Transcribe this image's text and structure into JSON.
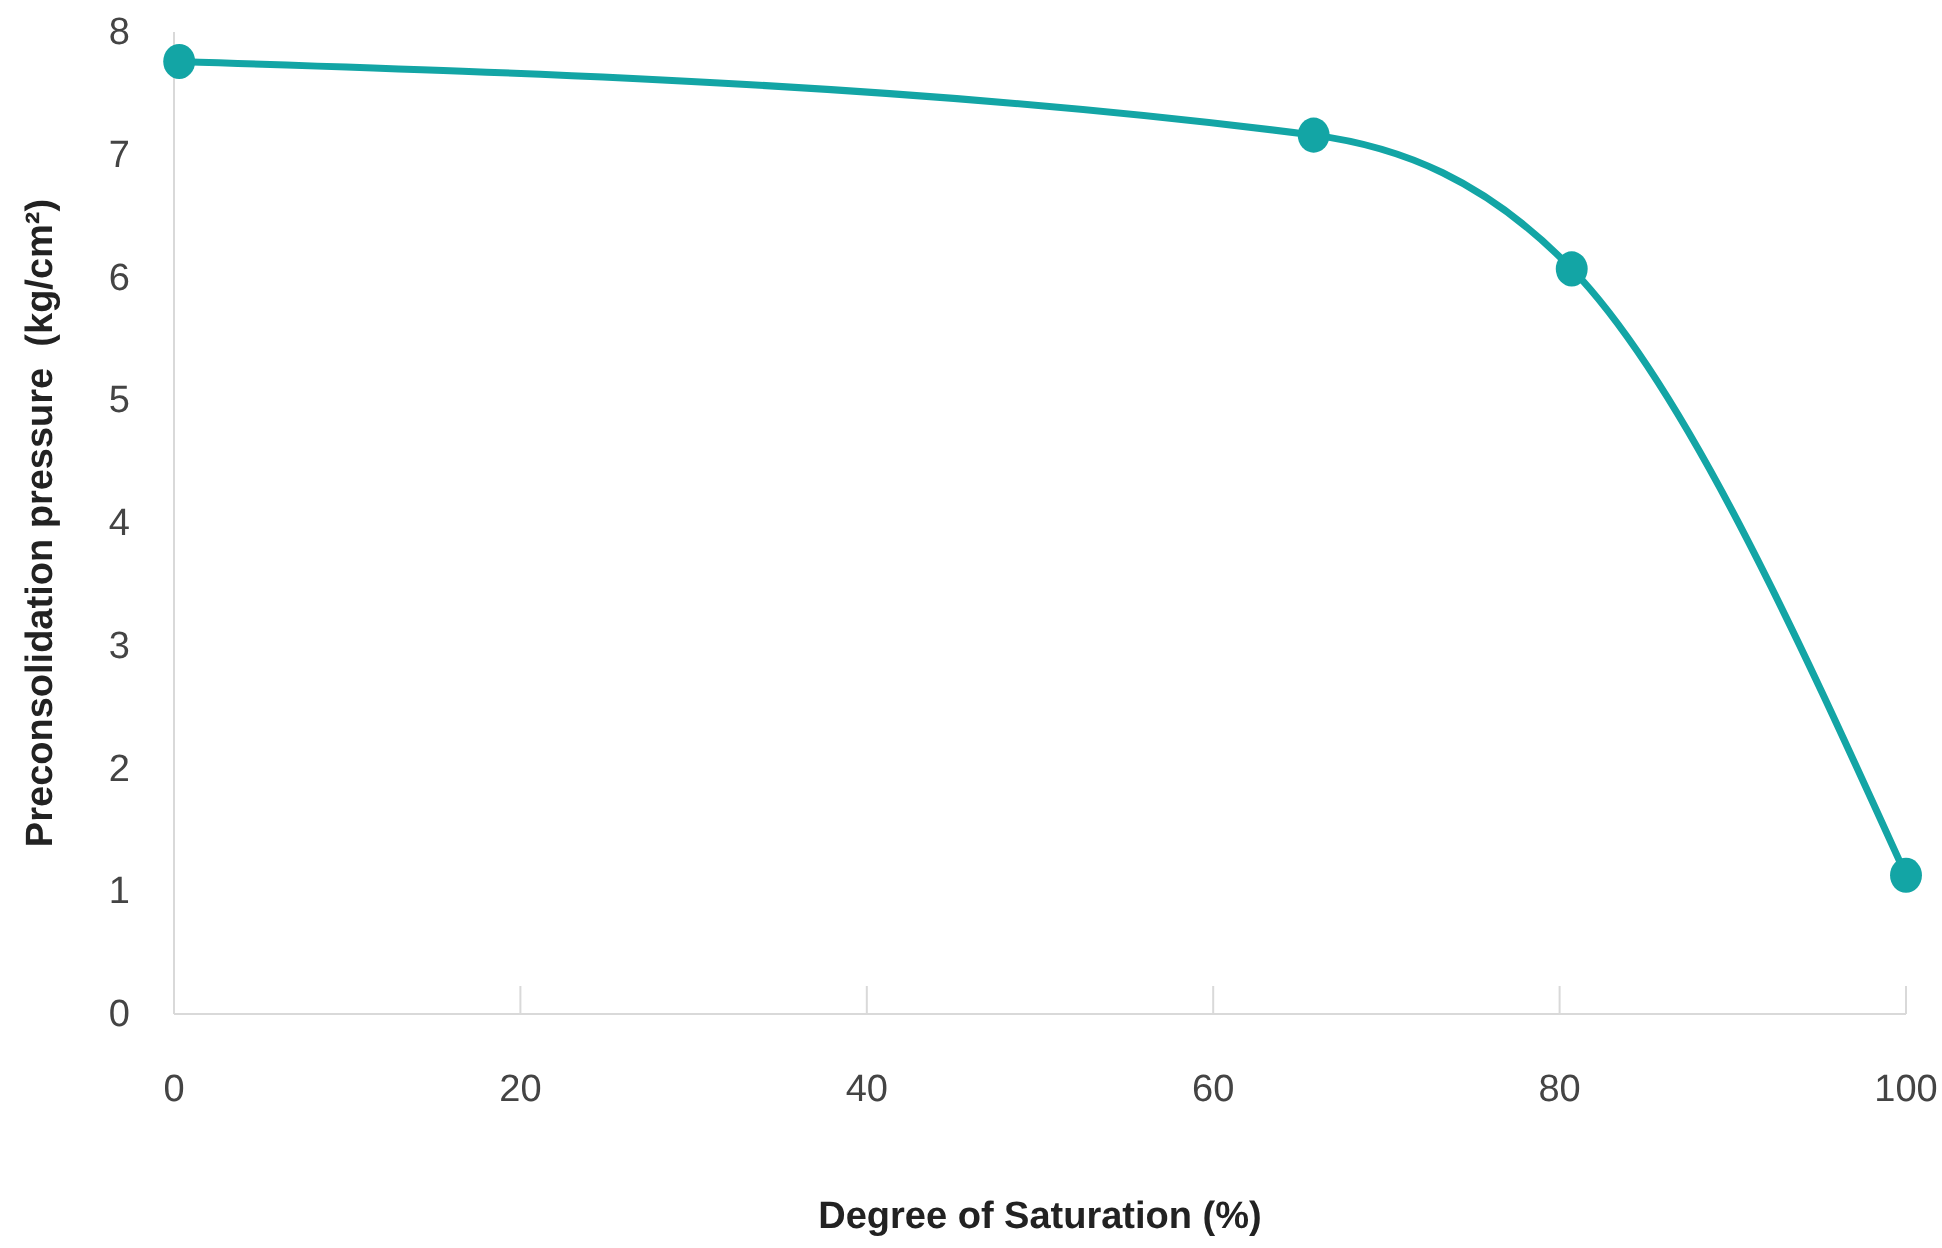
{
  "chart_data": {
    "type": "line",
    "xlabel": "Degree of Saturation (%)",
    "ylabel": "Preconsolidation pressure  (kg/cm²)",
    "x": [
      0.3,
      65.8,
      80.7,
      100
    ],
    "series": [
      {
        "color": "#13a5a5",
        "values": [
          7.76,
          7.16,
          6.07,
          1.13
        ]
      }
    ],
    "xlim": [
      0,
      100
    ],
    "xticks": [
      0,
      20,
      40,
      60,
      80,
      100
    ],
    "ylim": [
      0,
      8
    ],
    "yticks": [
      0,
      1,
      2,
      3,
      4,
      5,
      6,
      7,
      8
    ],
    "marker": "circle",
    "line_style": "solid"
  }
}
